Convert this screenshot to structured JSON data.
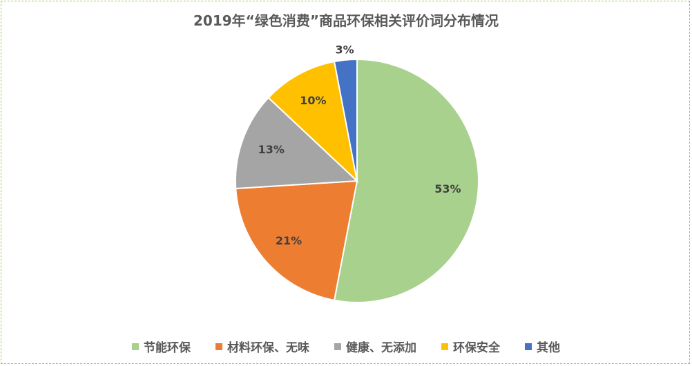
{
  "chart_data": {
    "type": "pie",
    "title": "2019年“绿色消费”商品环保相关评价词分布情况",
    "categories": [
      "节能环保",
      "材料环保、无味",
      "健康、无添加",
      "环保安全",
      "其他"
    ],
    "values": [
      53,
      21,
      13,
      10,
      3
    ],
    "labels": [
      "53%",
      "21%",
      "13%",
      "10%",
      "3%"
    ],
    "colors": [
      "#a9d18e",
      "#ed7d31",
      "#a5a5a5",
      "#ffc000",
      "#4472c4"
    ],
    "legend_position": "bottom"
  }
}
